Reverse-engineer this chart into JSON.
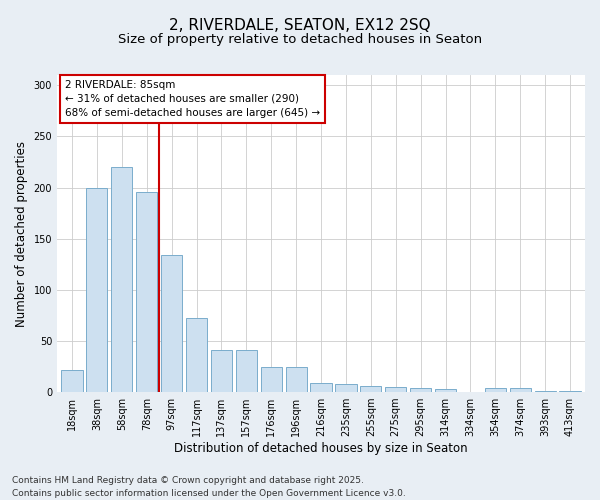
{
  "title_line1": "2, RIVERDALE, SEATON, EX12 2SQ",
  "title_line2": "Size of property relative to detached houses in Seaton",
  "xlabel": "Distribution of detached houses by size in Seaton",
  "ylabel": "Number of detached properties",
  "categories": [
    "18sqm",
    "38sqm",
    "58sqm",
    "78sqm",
    "97sqm",
    "117sqm",
    "137sqm",
    "157sqm",
    "176sqm",
    "196sqm",
    "216sqm",
    "235sqm",
    "255sqm",
    "275sqm",
    "295sqm",
    "314sqm",
    "334sqm",
    "354sqm",
    "374sqm",
    "393sqm",
    "413sqm"
  ],
  "values": [
    22,
    200,
    220,
    196,
    134,
    72,
    41,
    41,
    25,
    25,
    9,
    8,
    6,
    5,
    4,
    3,
    0,
    4,
    4,
    1,
    1
  ],
  "bar_color": "#cde0f0",
  "bar_edge_color": "#7aaccc",
  "vline_color": "#cc0000",
  "annotation_text": "2 RIVERDALE: 85sqm\n← 31% of detached houses are smaller (290)\n68% of semi-detached houses are larger (645) →",
  "annotation_box_color": "#ffffff",
  "annotation_box_edge": "#cc0000",
  "ylim": [
    0,
    310
  ],
  "yticks": [
    0,
    50,
    100,
    150,
    200,
    250,
    300
  ],
  "background_color": "#e8eef4",
  "plot_background": "#ffffff",
  "footer": "Contains HM Land Registry data © Crown copyright and database right 2025.\nContains public sector information licensed under the Open Government Licence v3.0.",
  "title_fontsize": 11,
  "subtitle_fontsize": 9.5,
  "axis_label_fontsize": 8.5,
  "tick_fontsize": 7,
  "footer_fontsize": 6.5,
  "annotation_fontsize": 7.5
}
